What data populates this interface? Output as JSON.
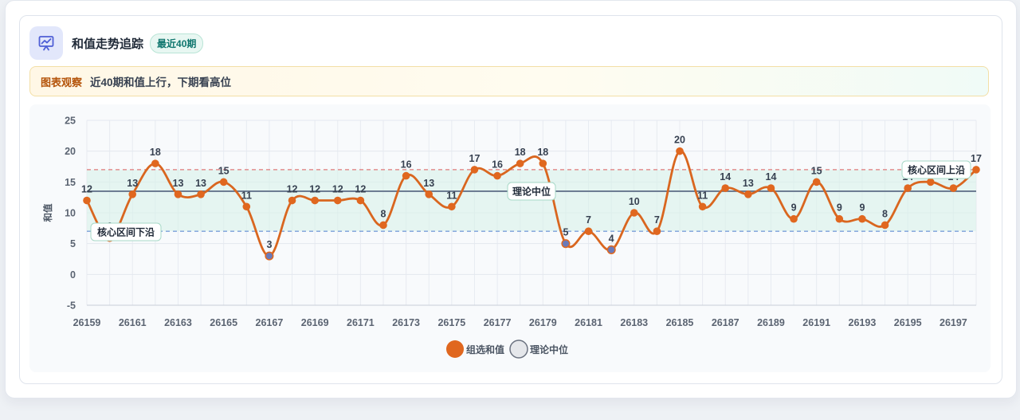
{
  "header": {
    "title": "和值走势追踪",
    "badge": "最近40期",
    "icon": "chart-line-icon"
  },
  "insight": {
    "label": "图表观察",
    "text": "近40期和值上行，下期看高位"
  },
  "colors": {
    "line": "#d9661f",
    "point": "#e0671f",
    "point_low": "#6b7ab8",
    "upper_band": "#e07a7a",
    "lower_band": "#7a9fd9",
    "median": "#64748b",
    "band_fill": "#d9f2ea"
  },
  "chart_data": {
    "type": "line",
    "x": [
      26159,
      26160,
      26161,
      26162,
      26163,
      26164,
      26165,
      26166,
      26167,
      26168,
      26169,
      26170,
      26171,
      26172,
      26173,
      26174,
      26175,
      26176,
      26177,
      26178,
      26179,
      26180,
      26181,
      26182,
      26183,
      26184,
      26185,
      26186,
      26187,
      26188,
      26189,
      26190,
      26191,
      26192,
      26193,
      26194,
      26195,
      26196,
      26197,
      26198
    ],
    "series": [
      {
        "name": "组选和值",
        "values": [
          12,
          6,
          13,
          18,
          13,
          13,
          15,
          11,
          3,
          12,
          12,
          12,
          12,
          8,
          16,
          13,
          11,
          17,
          16,
          18,
          18,
          5,
          7,
          4,
          10,
          7,
          20,
          11,
          14,
          13,
          14,
          9,
          15,
          9,
          9,
          8,
          14,
          15,
          14,
          17
        ]
      }
    ],
    "xticks": [
      26159,
      26161,
      26163,
      26165,
      26167,
      26169,
      26171,
      26173,
      26175,
      26177,
      26179,
      26181,
      26183,
      26185,
      26187,
      26189,
      26191,
      26193,
      26195,
      26197
    ],
    "yticks": [
      -5,
      0,
      5,
      10,
      15,
      20,
      25
    ],
    "ylim": [
      -5,
      25
    ],
    "ylabel": "和值",
    "median": {
      "label": "理论中位",
      "value": 13.5
    },
    "band": {
      "upper": {
        "label": "核心区间上沿",
        "value": 17
      },
      "lower": {
        "label": "核心区间下沿",
        "value": 7
      }
    },
    "legend": {
      "position": "bottom",
      "items": [
        {
          "name": "组选和值",
          "color": "#e0671f"
        },
        {
          "name": "理论中位",
          "color": "#e5e7eb"
        }
      ]
    },
    "grid": true
  }
}
